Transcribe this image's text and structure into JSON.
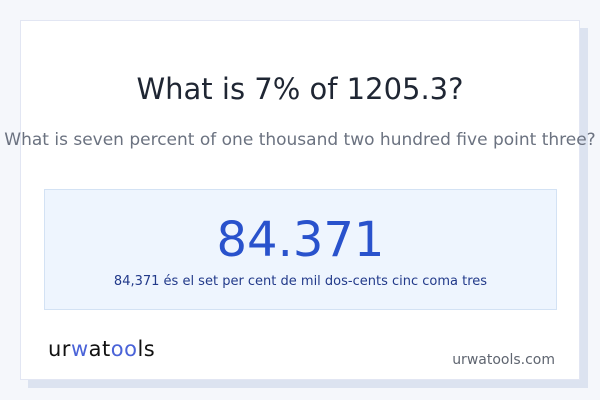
{
  "title": "What is 7% of 1205.3?",
  "subtitle": "What is seven percent of one thousand two hundred five point three?",
  "result": {
    "value": "84.371",
    "words": "84,371 és el set per cent de mil dos-cents cinc coma tres"
  },
  "footer": {
    "logo": "urwatools",
    "site": "urwatools.com"
  },
  "colors": {
    "accent": "#2952cc",
    "background": "#f5f7fb",
    "result_bg": "#eef5fe"
  }
}
